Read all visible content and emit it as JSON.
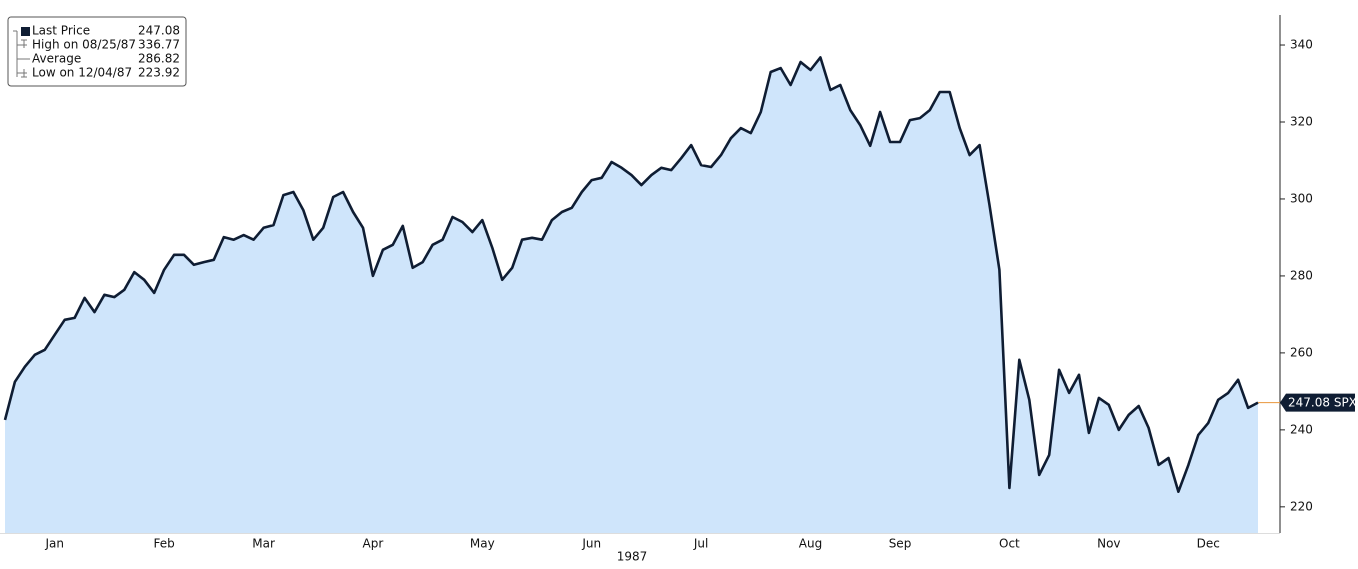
{
  "chart_data": {
    "type": "area",
    "categories": [
      null,
      null,
      null,
      null,
      null,
      "Jan",
      null,
      null,
      null,
      null,
      null,
      null,
      null,
      null,
      null,
      null,
      "Feb",
      null,
      null,
      null,
      null,
      null,
      null,
      null,
      null,
      null,
      "Mar",
      null,
      null,
      null,
      null,
      null,
      null,
      null,
      null,
      null,
      null,
      "Apr",
      null,
      null,
      null,
      null,
      null,
      null,
      null,
      null,
      null,
      null,
      "May",
      null,
      null,
      null,
      null,
      null,
      null,
      null,
      null,
      null,
      null,
      "Jun",
      null,
      null,
      null,
      null,
      null,
      null,
      null,
      null,
      null,
      null,
      "Jul",
      null,
      null,
      null,
      null,
      null,
      null,
      null,
      null,
      null,
      null,
      "Aug",
      null,
      null,
      null,
      null,
      null,
      null,
      null,
      null,
      "Sep",
      null,
      null,
      null,
      null,
      null,
      null,
      null,
      null,
      null,
      null,
      "Oct",
      null,
      null,
      null,
      null,
      null,
      null,
      null,
      null,
      null,
      "Nov",
      null,
      null,
      null,
      null,
      null,
      null,
      null,
      null,
      null,
      "Dec",
      null,
      null,
      null,
      null,
      null
    ],
    "series": [
      {
        "name": "SPX",
        "color": "#0f1d33",
        "fill": "#cfe5fb",
        "values": [
          242.6,
          252.5,
          256.4,
          259.5,
          260.8,
          264.7,
          268.6,
          269.1,
          274.3,
          270.6,
          275.1,
          274.5,
          276.4,
          281.0,
          279.0,
          275.6,
          281.6,
          285.5,
          285.5,
          282.9,
          283.6,
          284.2,
          290.1,
          289.4,
          290.6,
          289.4,
          292.5,
          293.2,
          301.0,
          301.8,
          297.1,
          289.4,
          292.5,
          300.5,
          301.8,
          296.6,
          292.5,
          280.0,
          286.8,
          288.1,
          293.0,
          282.1,
          283.6,
          288.1,
          289.4,
          295.3,
          294.0,
          291.4,
          294.5,
          287.3,
          279.0,
          282.1,
          289.4,
          289.9,
          289.4,
          294.5,
          296.6,
          297.7,
          301.8,
          304.9,
          305.5,
          309.6,
          308.1,
          306.2,
          303.6,
          306.2,
          308.1,
          307.5,
          310.6,
          314.0,
          308.8,
          308.3,
          311.4,
          315.8,
          318.4,
          317.1,
          322.6,
          333.0,
          334.0,
          329.6,
          335.6,
          333.5,
          336.77,
          328.3,
          329.6,
          323.1,
          319.2,
          313.8,
          322.6,
          314.8,
          314.8,
          320.5,
          321.0,
          323.1,
          327.8,
          327.8,
          318.4,
          311.4,
          314.0,
          298.4,
          281.6,
          224.9,
          258.2,
          247.8,
          228.3,
          233.5,
          255.6,
          249.6,
          254.3,
          239.2,
          248.3,
          246.5,
          240.0,
          243.9,
          246.2,
          240.5,
          230.9,
          232.7,
          223.92,
          230.9,
          238.7,
          241.8,
          247.8,
          249.6,
          253.0,
          245.7,
          247.08
        ]
      }
    ],
    "xlabel": "1987",
    "ylim": [
      213.2,
      347.8
    ],
    "yticks": [
      220,
      240,
      260,
      280,
      300,
      320,
      340
    ],
    "legend": [
      {
        "label": "Last Price",
        "value": 247.08
      },
      {
        "label": "High on 08/25/87",
        "value": 336.77
      },
      {
        "label": "Average",
        "value": 286.82
      },
      {
        "label": "Low on 12/04/87",
        "value": 223.92
      }
    ],
    "last_color": "#e8963c"
  }
}
